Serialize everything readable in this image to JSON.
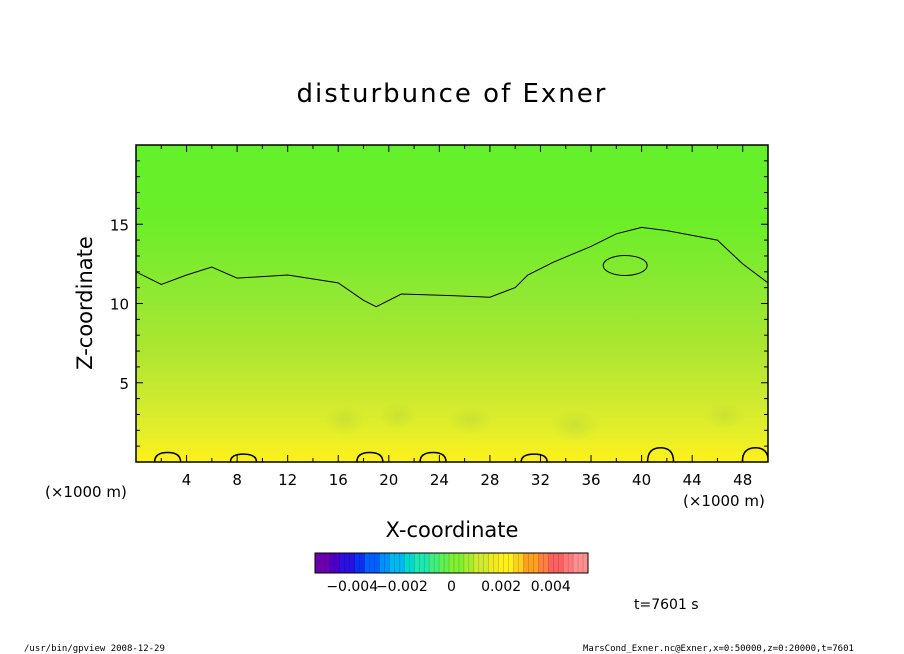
{
  "chart_data": {
    "type": "heatmap",
    "title": "disturbunce of Exner",
    "xlabel": "X-coordinate",
    "ylabel": "Z-coordinate",
    "x_units": "(×1000 m)",
    "y_units": "(×1000 m)",
    "xlim": [
      0,
      50
    ],
    "ylim": [
      0,
      20
    ],
    "x_ticks": [
      4,
      8,
      12,
      16,
      20,
      24,
      28,
      32,
      36,
      40,
      44,
      48
    ],
    "y_ticks": [
      5,
      10,
      15
    ],
    "colorbar": {
      "range": [
        -0.0055,
        0.0055
      ],
      "tick_labels": [
        "−0.004",
        "−0.002",
        "0",
        "0.002",
        "0.004"
      ],
      "tick_values": [
        -0.004,
        -0.002,
        0,
        0.002,
        0.004
      ]
    },
    "zero_contour": {
      "upper": [
        [
          0,
          12.0
        ],
        [
          2,
          11.2
        ],
        [
          4,
          11.8
        ],
        [
          6,
          12.3
        ],
        [
          8,
          11.6
        ],
        [
          12,
          11.8
        ],
        [
          16,
          11.3
        ],
        [
          18,
          10.2
        ],
        [
          19,
          9.8
        ],
        [
          21,
          10.6
        ],
        [
          25,
          10.5
        ],
        [
          28,
          10.4
        ],
        [
          30,
          11.0
        ],
        [
          31,
          11.8
        ],
        [
          33,
          12.6
        ],
        [
          36,
          13.6
        ],
        [
          38,
          14.4
        ],
        [
          40,
          14.8
        ],
        [
          42,
          14.6
        ],
        [
          46,
          14.0
        ],
        [
          48,
          12.5
        ],
        [
          50,
          11.3
        ]
      ],
      "closed_loop_center": [
        38.7,
        12.4
      ],
      "near_surface_bumps": [
        [
          2.5,
          0.6
        ],
        [
          8.5,
          0.5
        ],
        [
          18.5,
          0.6
        ],
        [
          23.5,
          0.6
        ],
        [
          31.5,
          0.5
        ],
        [
          41.5,
          0.9
        ],
        [
          49,
          0.9
        ]
      ]
    },
    "field_description_levels": [
      {
        "z_min": 0,
        "z_max": 3,
        "value": 0.0009
      },
      {
        "z_min": 3,
        "z_max": 8,
        "value": 0.0005
      },
      {
        "z_min": 8,
        "z_max": 14,
        "value": 0.0002
      },
      {
        "z_min": 14,
        "z_max": 20,
        "value": 0.0001
      }
    ]
  },
  "time_label": "t=7601 s",
  "footer_left": "/usr/bin/gpview   2008-12-29",
  "footer_right": "MarsCond_Exner.nc@Exner,x=0:50000,z=0:20000,t=7601"
}
